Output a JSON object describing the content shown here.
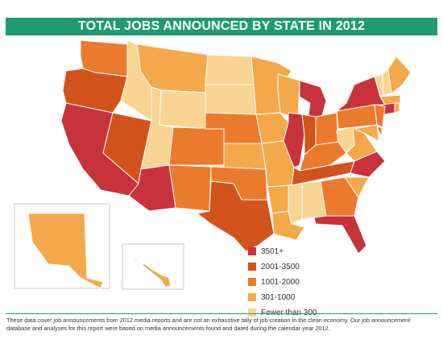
{
  "title": "TOTAL JOBS ANNOUNCED BY STATE IN 2012",
  "colors": {
    "c3501": "#c8323a",
    "c2001": "#d2531c",
    "c1001": "#ec7a2c",
    "c301": "#f4a84a",
    "c0": "#fad492",
    "header": "#1f9a73"
  },
  "legend": [
    {
      "label": "3501+",
      "key": "c3501"
    },
    {
      "label": "2001-3500",
      "key": "c2001"
    },
    {
      "label": "1001-2000",
      "key": "c1001"
    },
    {
      "label": "301-1000",
      "key": "c301"
    },
    {
      "label": "Fewer than 300",
      "key": "c0"
    }
  ],
  "states": {
    "WA": "c1001",
    "OR": "c2001",
    "CA": "c3501",
    "NV": "c2001",
    "ID": "c0",
    "MT": "c301",
    "WY": "c0",
    "UT": "c0",
    "AZ": "c3501",
    "CO": "c1001",
    "NM": "c1001",
    "ND": "c0",
    "SD": "c0",
    "NE": "c1001",
    "KS": "c301",
    "OK": "c1001",
    "TX": "c2001",
    "MN": "c301",
    "IA": "c301",
    "MO": "c301",
    "AR": "c301",
    "LA": "c301",
    "WI": "c301",
    "IL": "c3501",
    "MS": "c0",
    "MI": "c3501",
    "IN": "c2001",
    "KY": "c1001",
    "TN": "c2001",
    "AL": "c0",
    "OH": "c1001",
    "WV": "c0",
    "VA": "c301",
    "NC": "c3501",
    "SC": "c301",
    "GA": "c1001",
    "FL": "c3501",
    "PA": "c1001",
    "NY": "c3501",
    "VT": "c0",
    "NH": "c0",
    "ME": "c301",
    "MA": "c301",
    "CT": "c3501",
    "RI": "c301",
    "NJ": "c1001",
    "DE": "c1001",
    "MD": "c301",
    "AK": "c301",
    "HI": "c301"
  },
  "footnote": "These data cover job announcements from 2012 media reports and are not an exhaustive tally of job creation in the clean economy. Our job announcement database and analyses for this report were based on media announcements found and dated during the calendar year 2012."
}
